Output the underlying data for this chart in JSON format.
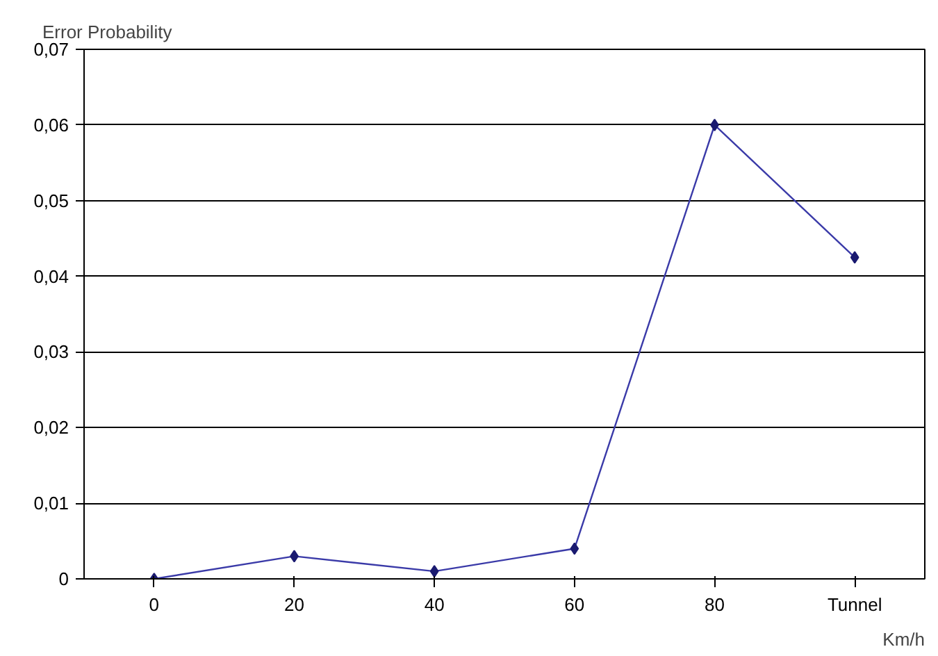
{
  "chart_data": {
    "type": "line",
    "ylabel": "Error Probability",
    "xlabel": "Km/h",
    "categories": [
      "0",
      "20",
      "40",
      "60",
      "80",
      "Tunnel"
    ],
    "series": [
      {
        "color": "#3a3aa8",
        "values": [
          0,
          0.003,
          0.001,
          0.004,
          0.06,
          0.0425
        ]
      }
    ],
    "ylim": [
      0,
      0.07
    ],
    "yticks": [
      0,
      {
        "value": 0.01,
        "label": "0,01"
      },
      {
        "value": 0.02,
        "label": "0,02"
      },
      {
        "value": 0.03,
        "label": "0,03"
      },
      {
        "value": 0.04,
        "label": "0,04"
      },
      {
        "value": 0.05,
        "label": "0,05"
      },
      {
        "value": 0.06,
        "label": "0,06"
      },
      {
        "value": 0.07,
        "label": "0,07"
      }
    ],
    "grid": "y",
    "marker": "diamond",
    "line_style": "solid"
  }
}
